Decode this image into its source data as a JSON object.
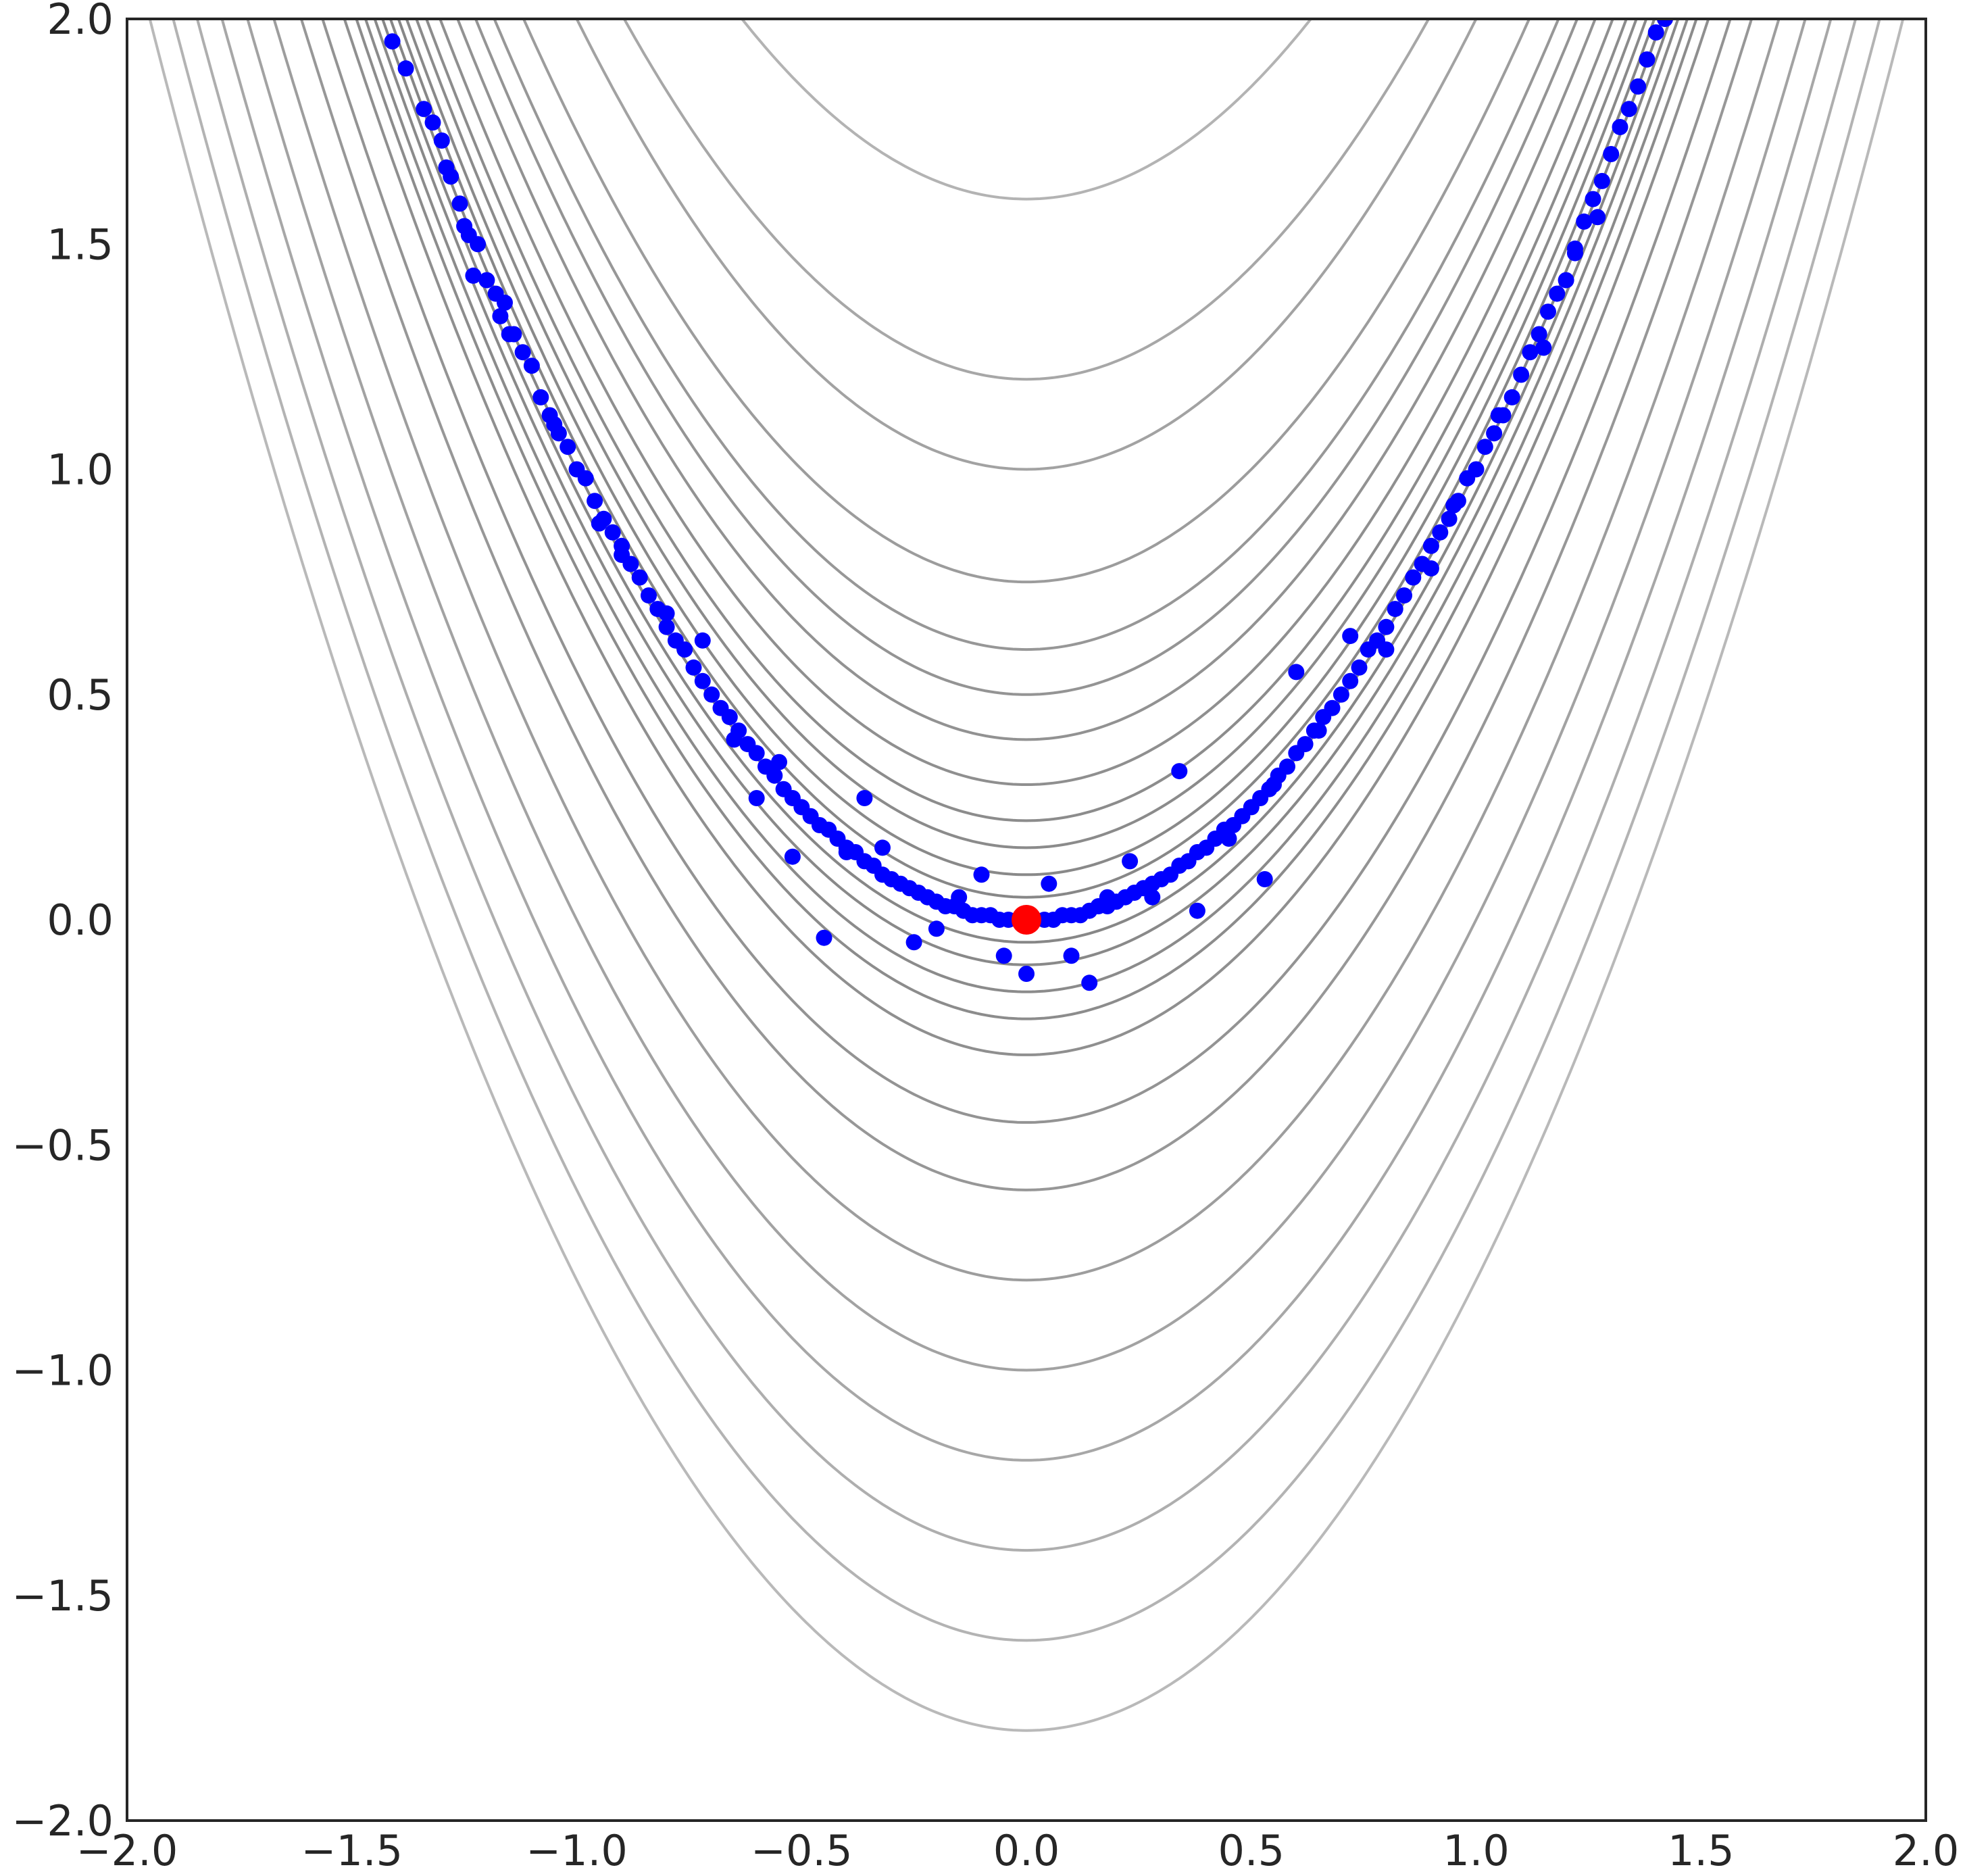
{
  "chart_data": {
    "type": "scatter",
    "title": "",
    "xlabel": "",
    "ylabel": "",
    "xlim": [
      -2.0,
      2.0
    ],
    "ylim": [
      -2.0,
      2.0
    ],
    "x_ticks": [
      -2.0,
      -1.5,
      -1.0,
      -0.5,
      0.0,
      0.5,
      1.0,
      1.5,
      2.0
    ],
    "x_tick_labels": [
      "−2.0",
      "−1.5",
      "−1.0",
      "−0.5",
      "0.0",
      "0.5",
      "1.0",
      "1.5",
      "2.0"
    ],
    "y_ticks": [
      -2.0,
      -1.5,
      -1.0,
      -0.5,
      0.0,
      0.5,
      1.0,
      1.5,
      2.0
    ],
    "y_tick_labels": [
      "−2.0",
      "−1.5",
      "−1.0",
      "−0.5",
      "0.0",
      "0.5",
      "1.0",
      "1.5",
      "2.0"
    ],
    "grid": false,
    "legend": "none",
    "background": {
      "type": "contour",
      "function": "y = x^2 + c (parabolic level curves)",
      "levels": [
        -1.8,
        -1.6,
        -1.4,
        -1.2,
        -1.0,
        -0.8,
        -0.6,
        -0.45,
        -0.3,
        -0.22,
        -0.16,
        -0.1,
        -0.05,
        0.0,
        0.05,
        0.1,
        0.16,
        0.22,
        0.3,
        0.4,
        0.5,
        0.6,
        0.75,
        1.0,
        1.2,
        1.6,
        2.0,
        2.6,
        3.2,
        3.8
      ],
      "color": "#808080"
    },
    "series": [
      {
        "marker": "circle",
        "color": "#0000ff",
        "points": [
          [
            -1.41,
            1.95
          ],
          [
            -1.38,
            1.89
          ],
          [
            -1.34,
            1.8
          ],
          [
            -1.32,
            1.77
          ],
          [
            -1.3,
            1.73
          ],
          [
            -1.29,
            1.67
          ],
          [
            -1.28,
            1.65
          ],
          [
            -1.26,
            1.59
          ],
          [
            -1.25,
            1.54
          ],
          [
            -1.24,
            1.52
          ],
          [
            -1.23,
            1.43
          ],
          [
            -1.2,
            1.42
          ],
          [
            -1.18,
            1.39
          ],
          [
            -1.17,
            1.34
          ],
          [
            -1.16,
            1.37
          ],
          [
            -1.14,
            1.3
          ],
          [
            -1.12,
            1.26
          ],
          [
            -1.1,
            1.23
          ],
          [
            -1.08,
            1.16
          ],
          [
            -1.06,
            1.12
          ],
          [
            -1.04,
            1.08
          ],
          [
            -1.02,
            1.05
          ],
          [
            -1.0,
            1.0
          ],
          [
            -0.98,
            0.98
          ],
          [
            -0.96,
            0.93
          ],
          [
            -0.94,
            0.89
          ],
          [
            -0.92,
            0.86
          ],
          [
            -0.9,
            0.83
          ],
          [
            -0.88,
            0.79
          ],
          [
            -0.86,
            0.76
          ],
          [
            -0.84,
            0.72
          ],
          [
            -0.82,
            0.69
          ],
          [
            -0.8,
            0.65
          ],
          [
            -0.78,
            0.62
          ],
          [
            -0.76,
            0.6
          ],
          [
            -0.74,
            0.56
          ],
          [
            -0.72,
            0.53
          ],
          [
            -0.7,
            0.5
          ],
          [
            -0.68,
            0.47
          ],
          [
            -0.66,
            0.45
          ],
          [
            -0.64,
            0.42
          ],
          [
            -0.62,
            0.39
          ],
          [
            -0.6,
            0.37
          ],
          [
            -0.58,
            0.34
          ],
          [
            -0.56,
            0.32
          ],
          [
            -0.54,
            0.29
          ],
          [
            -0.52,
            0.27
          ],
          [
            -0.5,
            0.25
          ],
          [
            -0.48,
            0.23
          ],
          [
            -0.46,
            0.21
          ],
          [
            -0.44,
            0.2
          ],
          [
            -0.42,
            0.18
          ],
          [
            -0.4,
            0.16
          ],
          [
            -0.38,
            0.15
          ],
          [
            -0.36,
            0.13
          ],
          [
            -0.34,
            0.12
          ],
          [
            -0.32,
            0.1
          ],
          [
            -0.3,
            0.09
          ],
          [
            -0.28,
            0.08
          ],
          [
            -0.26,
            0.07
          ],
          [
            -0.24,
            0.06
          ],
          [
            -0.22,
            0.05
          ],
          [
            -0.2,
            0.04
          ],
          [
            -0.18,
            0.03
          ],
          [
            -0.16,
            0.03
          ],
          [
            -0.14,
            0.02
          ],
          [
            -0.12,
            0.01
          ],
          [
            -0.1,
            0.01
          ],
          [
            -0.08,
            0.01
          ],
          [
            -0.06,
            0.0
          ],
          [
            -0.04,
            0.0
          ],
          [
            -0.02,
            0.0
          ],
          [
            0.02,
            0.0
          ],
          [
            0.04,
            0.0
          ],
          [
            0.06,
            0.0
          ],
          [
            0.08,
            0.01
          ],
          [
            0.1,
            0.01
          ],
          [
            0.12,
            0.01
          ],
          [
            0.14,
            0.02
          ],
          [
            0.16,
            0.03
          ],
          [
            0.18,
            0.03
          ],
          [
            0.2,
            0.04
          ],
          [
            0.22,
            0.05
          ],
          [
            0.24,
            0.06
          ],
          [
            0.26,
            0.07
          ],
          [
            0.28,
            0.08
          ],
          [
            0.3,
            0.09
          ],
          [
            0.32,
            0.1
          ],
          [
            0.34,
            0.12
          ],
          [
            0.36,
            0.13
          ],
          [
            0.38,
            0.15
          ],
          [
            0.4,
            0.16
          ],
          [
            0.42,
            0.18
          ],
          [
            0.44,
            0.2
          ],
          [
            0.46,
            0.21
          ],
          [
            0.48,
            0.23
          ],
          [
            0.5,
            0.25
          ],
          [
            0.52,
            0.27
          ],
          [
            0.54,
            0.29
          ],
          [
            0.56,
            0.32
          ],
          [
            0.58,
            0.34
          ],
          [
            0.6,
            0.37
          ],
          [
            0.62,
            0.39
          ],
          [
            0.64,
            0.42
          ],
          [
            0.66,
            0.45
          ],
          [
            0.68,
            0.47
          ],
          [
            0.7,
            0.5
          ],
          [
            0.72,
            0.53
          ],
          [
            0.74,
            0.56
          ],
          [
            0.76,
            0.6
          ],
          [
            0.78,
            0.62
          ],
          [
            0.8,
            0.65
          ],
          [
            0.82,
            0.69
          ],
          [
            0.84,
            0.72
          ],
          [
            0.86,
            0.76
          ],
          [
            0.88,
            0.79
          ],
          [
            0.9,
            0.83
          ],
          [
            0.92,
            0.86
          ],
          [
            0.94,
            0.89
          ],
          [
            0.96,
            0.93
          ],
          [
            0.98,
            0.98
          ],
          [
            1.0,
            1.0
          ],
          [
            1.02,
            1.05
          ],
          [
            1.04,
            1.08
          ],
          [
            1.06,
            1.12
          ],
          [
            1.08,
            1.16
          ],
          [
            1.1,
            1.21
          ],
          [
            1.12,
            1.26
          ],
          [
            1.14,
            1.3
          ],
          [
            1.16,
            1.35
          ],
          [
            1.18,
            1.39
          ],
          [
            1.2,
            1.42
          ],
          [
            1.22,
            1.49
          ],
          [
            1.24,
            1.55
          ],
          [
            1.26,
            1.6
          ],
          [
            1.28,
            1.64
          ],
          [
            1.3,
            1.7
          ],
          [
            1.32,
            1.76
          ],
          [
            1.34,
            1.8
          ],
          [
            1.36,
            1.85
          ],
          [
            1.38,
            1.91
          ],
          [
            1.4,
            1.97
          ],
          [
            1.42,
            2.0
          ],
          [
            -0.45,
            -0.04
          ],
          [
            0.14,
            -0.14
          ],
          [
            0.53,
            0.09
          ],
          [
            0.0,
            -0.12
          ],
          [
            -0.52,
            0.14
          ],
          [
            -0.32,
            0.16
          ],
          [
            0.34,
            0.33
          ],
          [
            -0.36,
            0.27
          ],
          [
            0.23,
            0.13
          ],
          [
            -0.1,
            0.1
          ],
          [
            0.1,
            -0.08
          ],
          [
            -0.25,
            -0.05
          ],
          [
            0.38,
            0.02
          ],
          [
            -0.6,
            0.27
          ],
          [
            0.6,
            0.55
          ],
          [
            -0.72,
            0.62
          ],
          [
            0.72,
            0.63
          ],
          [
            -0.9,
            0.81
          ],
          [
            0.9,
            0.78
          ],
          [
            -0.05,
            -0.08
          ],
          [
            0.05,
            0.08
          ],
          [
            -0.15,
            0.05
          ],
          [
            0.18,
            0.05
          ],
          [
            -0.2,
            -0.02
          ],
          [
            0.28,
            0.05
          ],
          [
            -0.4,
            0.15
          ],
          [
            0.45,
            0.18
          ],
          [
            -0.55,
            0.35
          ],
          [
            0.55,
            0.3
          ],
          [
            -0.65,
            0.4
          ],
          [
            0.65,
            0.42
          ],
          [
            -0.8,
            0.68
          ],
          [
            0.8,
            0.6
          ],
          [
            -0.95,
            0.88
          ],
          [
            0.95,
            0.92
          ],
          [
            -1.05,
            1.1
          ],
          [
            1.05,
            1.12
          ],
          [
            -1.15,
            1.3
          ],
          [
            1.15,
            1.27
          ],
          [
            -1.22,
            1.5
          ],
          [
            1.22,
            1.48
          ],
          [
            1.27,
            1.56
          ]
        ]
      },
      {
        "marker": "circle",
        "color": "#ff0000",
        "points": [
          [
            0.0,
            0.0
          ]
        ]
      }
    ]
  }
}
